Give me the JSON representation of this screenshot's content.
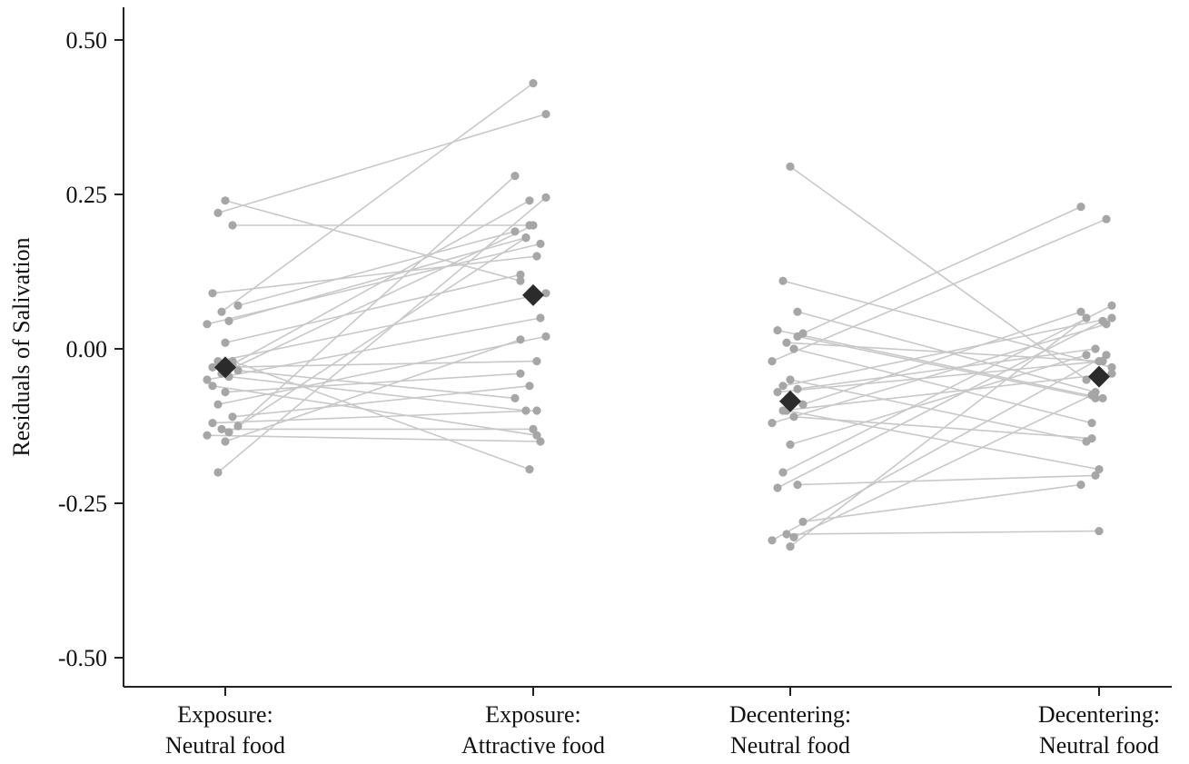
{
  "chart_data": {
    "type": "scatter",
    "subtype": "paired-dot-plot",
    "ylabel": "Residuals of Salivation",
    "ylim": [
      -0.55,
      0.55
    ],
    "yticks": [
      "0.50",
      "0.25",
      "0.00",
      "-0.25",
      "-0.50"
    ],
    "ytick_values": [
      0.5,
      0.25,
      0.0,
      -0.25,
      -0.5
    ],
    "categories": [
      [
        "Exposure:",
        "Neutral food"
      ],
      [
        "Exposure:",
        "Attractive food"
      ],
      [
        "Decentering:",
        "Neutral food"
      ],
      [
        "Decentering:",
        "Neutral food"
      ]
    ],
    "groups": [
      {
        "from": 0,
        "to": 1,
        "pairs": [
          [
            0.24,
            0.11
          ],
          [
            0.22,
            0.38
          ],
          [
            0.2,
            0.2
          ],
          [
            0.09,
            0.15
          ],
          [
            0.07,
            0.19
          ],
          [
            0.06,
            0.43
          ],
          [
            0.045,
            0.18
          ],
          [
            0.04,
            0.17
          ],
          [
            0.01,
            0.12
          ],
          [
            -0.02,
            0.09
          ],
          [
            -0.025,
            0.24
          ],
          [
            -0.03,
            -0.02
          ],
          [
            -0.035,
            -0.08
          ],
          [
            -0.04,
            0.2
          ],
          [
            -0.045,
            -0.1
          ],
          [
            -0.05,
            0.05
          ],
          [
            -0.07,
            -0.04
          ],
          [
            -0.09,
            0.02
          ],
          [
            -0.11,
            -0.06
          ],
          [
            -0.12,
            -0.1
          ],
          [
            -0.125,
            0.28
          ],
          [
            -0.13,
            -0.13
          ],
          [
            -0.135,
            0.18
          ],
          [
            -0.14,
            -0.15
          ],
          [
            -0.15,
            0.015
          ],
          [
            -0.2,
            0.245
          ],
          [
            -0.02,
            -0.195
          ],
          [
            -0.06,
            -0.14
          ]
        ],
        "mean": [
          -0.03,
          0.087
        ]
      },
      {
        "from": 2,
        "to": 3,
        "pairs": [
          [
            0.295,
            -0.05
          ],
          [
            0.11,
            -0.03
          ],
          [
            0.06,
            -0.07
          ],
          [
            0.03,
            -0.08
          ],
          [
            0.025,
            0.23
          ],
          [
            0.01,
            -0.02
          ],
          [
            0.0,
            -0.12
          ],
          [
            -0.02,
            0.21
          ],
          [
            -0.05,
            -0.15
          ],
          [
            -0.06,
            0.05
          ],
          [
            -0.065,
            0.0
          ],
          [
            -0.07,
            -0.02
          ],
          [
            -0.09,
            0.06
          ],
          [
            -0.1,
            -0.195
          ],
          [
            -0.11,
            -0.145
          ],
          [
            -0.12,
            0.04
          ],
          [
            -0.155,
            -0.01
          ],
          [
            -0.2,
            0.07
          ],
          [
            -0.22,
            -0.205
          ],
          [
            -0.225,
            0.045
          ],
          [
            -0.28,
            -0.22
          ],
          [
            -0.3,
            -0.295
          ],
          [
            -0.305,
            -0.075
          ],
          [
            -0.31,
            -0.01
          ],
          [
            -0.32,
            0.05
          ],
          [
            -0.1,
            -0.04
          ],
          [
            0.02,
            -0.08
          ]
        ],
        "mean": [
          -0.085,
          -0.045
        ]
      }
    ],
    "colors": {
      "points": "#a6a6a6",
      "lines": "#c8c8c8",
      "mean": "#2b2b2b",
      "axis": "#222222"
    }
  }
}
